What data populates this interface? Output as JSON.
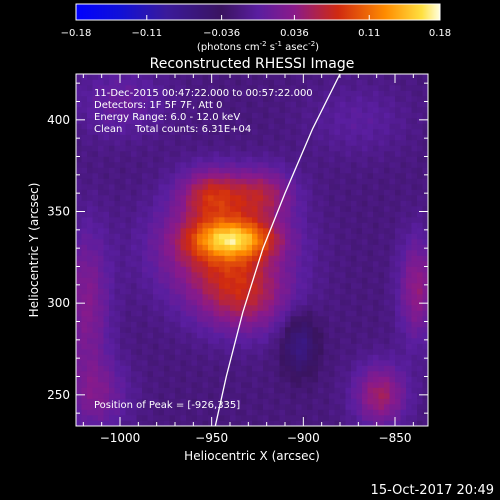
{
  "colorbar": {
    "ticks": [
      "-0.18",
      "-0.11",
      "-0.036",
      "0.036",
      "0.11",
      "0.18"
    ],
    "min": -0.18,
    "max": 0.18,
    "units_prefix": "(photons cm",
    "units_exp1": "-2",
    "units_mid1": " s",
    "units_exp2": "-1",
    "units_mid2": " asec",
    "units_exp3": "-2",
    "units_suffix": ")"
  },
  "chart_data": {
    "type": "heatmap",
    "title": "Reconstructed RHESSI Image",
    "xlabel": "Heliocentric X (arcsec)",
    "ylabel": "Heliocentric Y (arcsec)",
    "xlim": [
      -1024,
      -832
    ],
    "ylim": [
      233,
      425
    ],
    "x_ticks": [
      -1000,
      -950,
      -900,
      -850
    ],
    "y_ticks": [
      250,
      300,
      350,
      400
    ],
    "x_tick_labels": [
      "−1000",
      "−950",
      "−900",
      "−850"
    ],
    "y_tick_labels": [
      "250",
      "300",
      "350",
      "400"
    ],
    "info_lines": [
      "11-Dec-2015 00:47:22.000 to 00:57:22.000",
      "Detectors: 1F 5F 7F, Att 0",
      "Energy Range: 6.0 - 12.0 keV",
      "Clean    Total counts: 6.31E+04"
    ],
    "peak_label": "Position of Peak = [-926,335]",
    "peak": [
      -926,
      335
    ],
    "sources": [
      {
        "x": -938,
        "y": 335,
        "sx": 16,
        "sy": 7,
        "amp": 0.1
      },
      {
        "x": -945,
        "y": 330,
        "sx": 24,
        "sy": 20,
        "amp": 0.09
      },
      {
        "x": -950,
        "y": 360,
        "sx": 12,
        "sy": 10,
        "amp": 0.07
      },
      {
        "x": -922,
        "y": 360,
        "sx": 12,
        "sy": 10,
        "amp": 0.06
      },
      {
        "x": -932,
        "y": 302,
        "sx": 18,
        "sy": 14,
        "amp": 0.06
      },
      {
        "x": -902,
        "y": 278,
        "sx": 7,
        "sy": 12,
        "amp": -0.05
      },
      {
        "x": -858,
        "y": 250,
        "sx": 10,
        "sy": 12,
        "amp": 0.07
      },
      {
        "x": -838,
        "y": 308,
        "sx": 7,
        "sy": 20,
        "amp": 0.06
      },
      {
        "x": -1018,
        "y": 300,
        "sx": 9,
        "sy": 30,
        "amp": 0.05
      },
      {
        "x": -1012,
        "y": 250,
        "sx": 12,
        "sy": 14,
        "amp": 0.04
      },
      {
        "x": -1000,
        "y": 410,
        "sx": 18,
        "sy": 14,
        "amp": 0.03
      },
      {
        "x": -870,
        "y": 400,
        "sx": 20,
        "sy": 14,
        "amp": 0.02
      }
    ],
    "background": -0.02,
    "limb_curve": [
      [
        -880,
        425
      ],
      [
        -895,
        395
      ],
      [
        -910,
        360
      ],
      [
        -922,
        330
      ],
      [
        -933,
        295
      ],
      [
        -942,
        260
      ],
      [
        -948,
        233
      ]
    ]
  },
  "footer": {
    "timestamp": "15-Oct-2017 20:49"
  }
}
